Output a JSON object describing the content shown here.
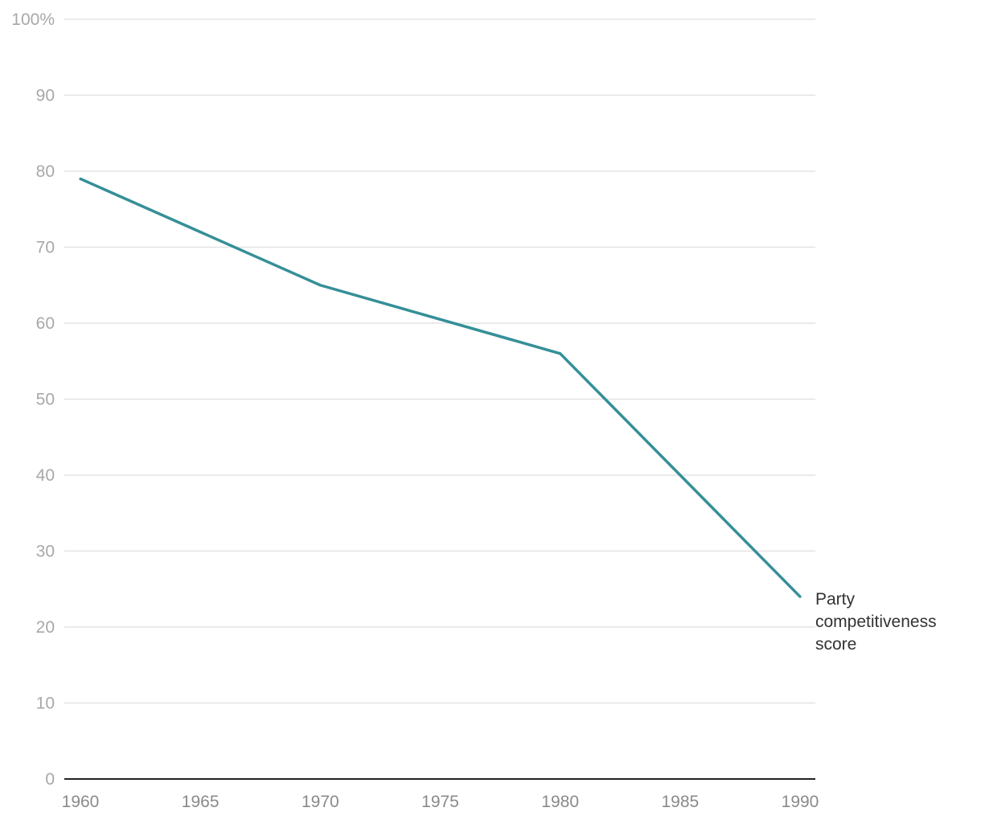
{
  "chart_data": {
    "type": "line",
    "title": "",
    "xlabel": "",
    "ylabel": "",
    "x_ticks": [
      "1960",
      "1965",
      "1970",
      "1975",
      "1980",
      "1985",
      "1990"
    ],
    "y_ticks": [
      "0",
      "10",
      "20",
      "30",
      "40",
      "50",
      "60",
      "70",
      "80",
      "90",
      "100%"
    ],
    "xlim": [
      1960,
      1990
    ],
    "ylim": [
      0,
      100
    ],
    "grid": true,
    "series": [
      {
        "name": "Party competitiveness score",
        "label_lines": [
          "Party",
          "competitiveness",
          "score"
        ],
        "color": "#358f98",
        "x": [
          1960,
          1970,
          1980,
          1990
        ],
        "y": [
          79,
          65,
          56,
          24
        ]
      }
    ]
  }
}
